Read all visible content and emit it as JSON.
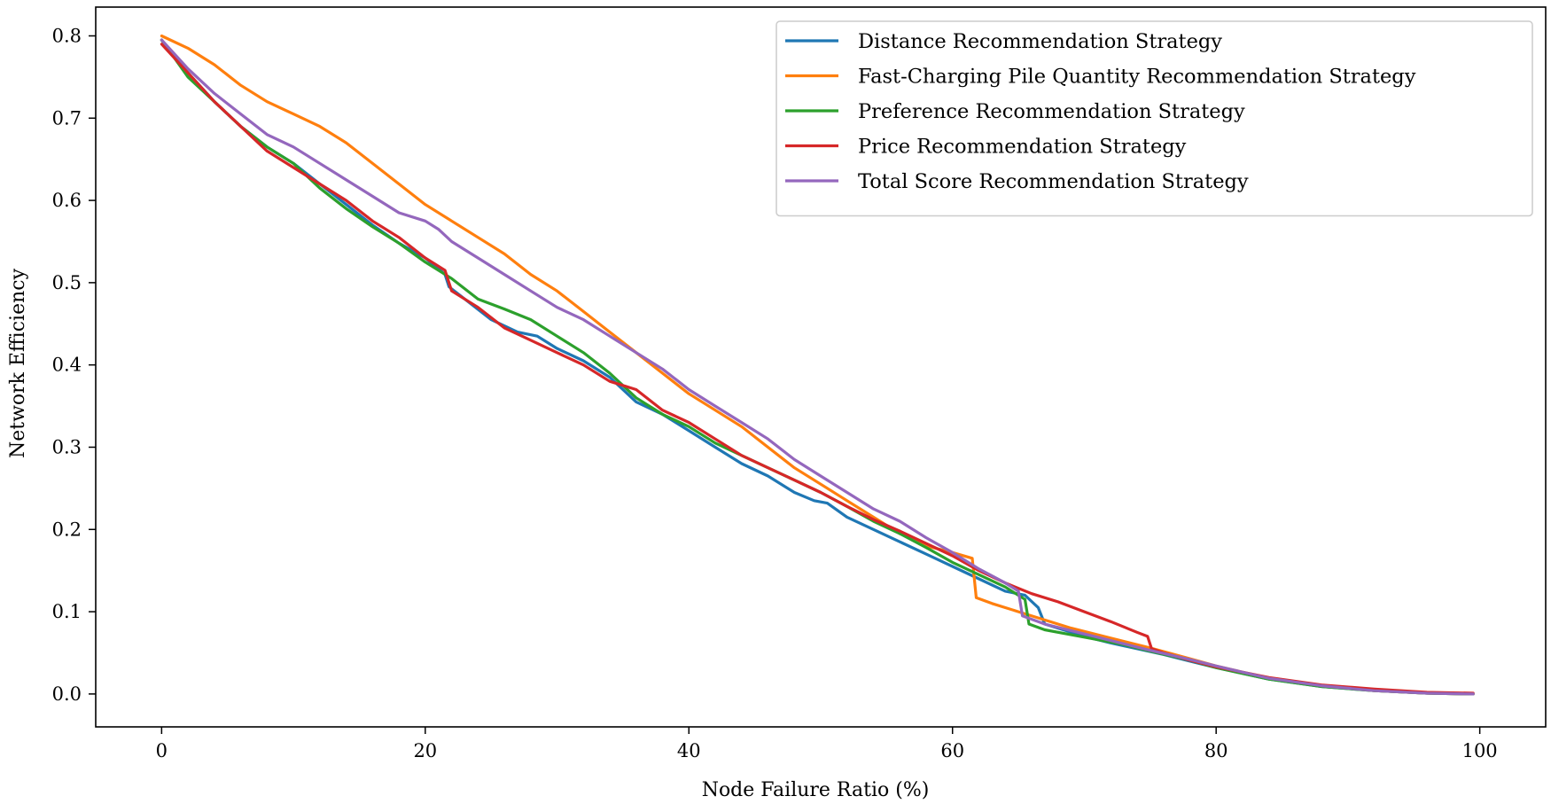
{
  "chart_data": {
    "type": "line",
    "title": "",
    "xlabel": "Node Failure Ratio (%)",
    "ylabel": "Network Efficiency",
    "xlim": [
      -5,
      105
    ],
    "ylim": [
      -0.04,
      0.835
    ],
    "xticks": [
      0,
      20,
      40,
      60,
      80,
      100
    ],
    "yticks": [
      0.0,
      0.1,
      0.2,
      0.3,
      0.4,
      0.5,
      0.6,
      0.7,
      0.8
    ],
    "xtick_labels": [
      "0",
      "20",
      "40",
      "60",
      "80",
      "100"
    ],
    "ytick_labels": [
      "0.0",
      "0.1",
      "0.2",
      "0.3",
      "0.4",
      "0.5",
      "0.6",
      "0.7",
      "0.8"
    ],
    "grid": false,
    "legend_position": "top-right",
    "series": [
      {
        "name": "Distance Recommendation Strategy",
        "color": "#1f77b4",
        "x": [
          0,
          2,
          4,
          6,
          8,
          10,
          12,
          14,
          16,
          18,
          20,
          21.5,
          21.8,
          23,
          25,
          27,
          28.5,
          30,
          32,
          34,
          36,
          38,
          40,
          42,
          44,
          46,
          48,
          49.5,
          50.5,
          52,
          54,
          56,
          58,
          60,
          62,
          64,
          65.5,
          66.5,
          67,
          68,
          70,
          72,
          74,
          76,
          78,
          80,
          84,
          88,
          92,
          96,
          99.5
        ],
        "y": [
          0.795,
          0.755,
          0.72,
          0.69,
          0.665,
          0.645,
          0.62,
          0.595,
          0.57,
          0.548,
          0.53,
          0.51,
          0.495,
          0.48,
          0.455,
          0.44,
          0.435,
          0.42,
          0.405,
          0.385,
          0.355,
          0.34,
          0.32,
          0.3,
          0.28,
          0.265,
          0.245,
          0.235,
          0.232,
          0.215,
          0.2,
          0.185,
          0.17,
          0.155,
          0.14,
          0.125,
          0.12,
          0.105,
          0.085,
          0.08,
          0.07,
          0.062,
          0.055,
          0.048,
          0.04,
          0.032,
          0.018,
          0.009,
          0.004,
          0.001,
          0.0
        ]
      },
      {
        "name": "Fast-Charging Pile Quantity Recommendation Strategy",
        "color": "#ff7f0e",
        "x": [
          0,
          2,
          4,
          6,
          8,
          10,
          12,
          14,
          16,
          18,
          20,
          22,
          24,
          26,
          28,
          30,
          32,
          34,
          36,
          38,
          40,
          42,
          44,
          46,
          48,
          50,
          52,
          54,
          56,
          58,
          60,
          61.5,
          61.8,
          63,
          65,
          67,
          69,
          71,
          73,
          75,
          78,
          80,
          84,
          88,
          92,
          96,
          99.5
        ],
        "y": [
          0.8,
          0.785,
          0.765,
          0.74,
          0.72,
          0.705,
          0.69,
          0.67,
          0.645,
          0.62,
          0.595,
          0.575,
          0.555,
          0.535,
          0.51,
          0.49,
          0.465,
          0.44,
          0.415,
          0.39,
          0.365,
          0.345,
          0.325,
          0.3,
          0.275,
          0.255,
          0.235,
          0.215,
          0.195,
          0.18,
          0.172,
          0.165,
          0.117,
          0.11,
          0.1,
          0.09,
          0.08,
          0.072,
          0.064,
          0.056,
          0.043,
          0.034,
          0.019,
          0.01,
          0.004,
          0.001,
          0.0
        ]
      },
      {
        "name": "Preference Recommendation Strategy",
        "color": "#2ca02c",
        "x": [
          0,
          2,
          4,
          6,
          8,
          10,
          12,
          14,
          16,
          18,
          20,
          22,
          24,
          26,
          28,
          30,
          32,
          34,
          36,
          38,
          40,
          42,
          44,
          46,
          48,
          50,
          52,
          54,
          56,
          58,
          60,
          62,
          64,
          65.5,
          65.8,
          67,
          69,
          71,
          73,
          75,
          78,
          80,
          84,
          88,
          92,
          96,
          99.5
        ],
        "y": [
          0.795,
          0.75,
          0.72,
          0.69,
          0.665,
          0.645,
          0.615,
          0.59,
          0.568,
          0.548,
          0.525,
          0.505,
          0.48,
          0.468,
          0.455,
          0.435,
          0.415,
          0.39,
          0.36,
          0.34,
          0.325,
          0.305,
          0.29,
          0.275,
          0.26,
          0.245,
          0.228,
          0.21,
          0.195,
          0.178,
          0.16,
          0.145,
          0.13,
          0.115,
          0.085,
          0.078,
          0.072,
          0.066,
          0.06,
          0.052,
          0.041,
          0.032,
          0.018,
          0.009,
          0.004,
          0.001,
          0.0
        ]
      },
      {
        "name": "Price Recommendation Strategy",
        "color": "#d62728",
        "x": [
          0,
          2,
          4,
          6,
          8,
          10,
          12,
          14,
          16,
          18,
          20,
          21.5,
          22,
          24,
          26,
          28,
          30,
          32,
          34,
          36,
          38,
          40,
          42,
          44,
          46,
          48,
          50,
          52,
          54,
          56,
          58,
          60,
          62,
          64,
          66,
          68,
          70,
          72,
          74,
          74.8,
          75.1,
          76,
          78,
          80,
          84,
          88,
          92,
          96,
          99.5
        ],
        "y": [
          0.79,
          0.755,
          0.72,
          0.69,
          0.66,
          0.64,
          0.62,
          0.6,
          0.575,
          0.555,
          0.53,
          0.515,
          0.49,
          0.47,
          0.445,
          0.43,
          0.415,
          0.4,
          0.38,
          0.37,
          0.345,
          0.33,
          0.31,
          0.29,
          0.275,
          0.26,
          0.245,
          0.228,
          0.212,
          0.198,
          0.183,
          0.168,
          0.15,
          0.135,
          0.122,
          0.112,
          0.1,
          0.088,
          0.075,
          0.07,
          0.055,
          0.05,
          0.041,
          0.033,
          0.02,
          0.011,
          0.006,
          0.002,
          0.001
        ]
      },
      {
        "name": "Total Score Recommendation Strategy",
        "color": "#9467bd",
        "x": [
          0,
          2,
          4,
          6,
          8,
          10,
          12,
          14,
          16,
          18,
          20,
          21,
          22,
          24,
          26,
          28,
          30,
          32,
          34,
          36,
          38,
          40,
          42,
          44,
          46,
          48,
          50,
          52,
          54,
          56,
          58,
          60,
          62,
          64,
          65,
          65.3,
          67,
          69,
          71,
          73,
          75,
          78,
          80,
          84,
          88,
          92,
          96,
          99.5
        ],
        "y": [
          0.795,
          0.76,
          0.73,
          0.705,
          0.68,
          0.665,
          0.645,
          0.625,
          0.605,
          0.585,
          0.575,
          0.565,
          0.55,
          0.53,
          0.51,
          0.49,
          0.47,
          0.455,
          0.435,
          0.415,
          0.395,
          0.37,
          0.35,
          0.33,
          0.31,
          0.285,
          0.265,
          0.245,
          0.225,
          0.21,
          0.19,
          0.172,
          0.152,
          0.135,
          0.125,
          0.095,
          0.085,
          0.077,
          0.069,
          0.061,
          0.053,
          0.042,
          0.034,
          0.019,
          0.01,
          0.004,
          0.001,
          0.0
        ]
      }
    ]
  }
}
